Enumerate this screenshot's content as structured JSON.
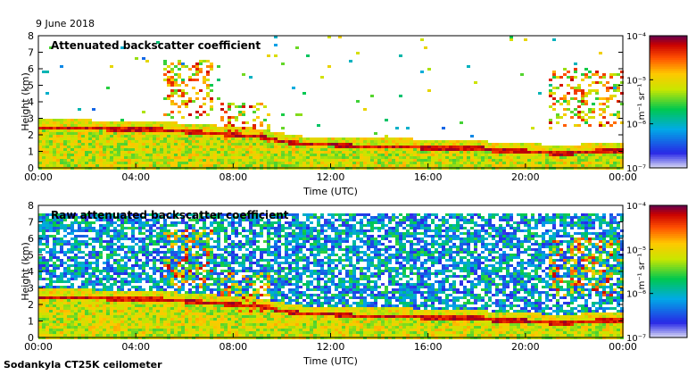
{
  "date_label": "9 June 2018",
  "instrument_label": "Sodankyla CT25K ceilometer",
  "chart_data": [
    {
      "type": "heatmap",
      "title": "Attenuated backscatter coefficient",
      "xlabel": "Time (UTC)",
      "ylabel": "Height (km)",
      "xlim": [
        0,
        24
      ],
      "ylim": [
        0,
        8
      ],
      "x_ticks": [
        "00:00",
        "04:00",
        "08:00",
        "12:00",
        "16:00",
        "20:00",
        "00:00"
      ],
      "y_ticks": [
        "0",
        "1",
        "2",
        "3",
        "4",
        "5",
        "6",
        "7",
        "8"
      ],
      "colorbar": {
        "unit_label": "m⁻¹ sr⁻¹",
        "ticks": [
          "10⁻⁴",
          "10⁻⁵",
          "10⁻⁶",
          "10⁻⁷"
        ],
        "scale": "log",
        "range": [
          1e-07,
          0.0001
        ]
      },
      "layer_height_km": [
        [
          0,
          2.4
        ],
        [
          2,
          2.4
        ],
        [
          4,
          2.3
        ],
        [
          5,
          2.3
        ],
        [
          6,
          2.2
        ],
        [
          7,
          2.1
        ],
        [
          8,
          2.0
        ],
        [
          9,
          1.9
        ],
        [
          10,
          1.6
        ],
        [
          11,
          1.4
        ],
        [
          12,
          1.4
        ],
        [
          13,
          1.3
        ],
        [
          14,
          1.3
        ],
        [
          15,
          1.3
        ],
        [
          16,
          1.2
        ],
        [
          17,
          1.2
        ],
        [
          18,
          1.2
        ],
        [
          19,
          1.0
        ],
        [
          20,
          1.0
        ],
        [
          21,
          0.9
        ],
        [
          22,
          0.9
        ],
        [
          23,
          1.0
        ],
        [
          24,
          1.0
        ]
      ],
      "elevated_features": [
        {
          "t_start": 5.2,
          "t_end": 7.2,
          "h_low": 3.0,
          "h_high": 6.5
        },
        {
          "t_start": 7.5,
          "t_end": 9.5,
          "h_low": 1.5,
          "h_high": 4.0
        },
        {
          "t_start": 21.0,
          "t_end": 24.0,
          "h_low": 2.5,
          "h_high": 6.0
        }
      ],
      "background_noise": "low"
    },
    {
      "type": "heatmap",
      "title": "Raw attenuated backscatter coefficient",
      "xlabel": "Time (UTC)",
      "ylabel": "Height (km)",
      "xlim": [
        0,
        24
      ],
      "ylim": [
        0,
        8
      ],
      "x_ticks": [
        "00:00",
        "04:00",
        "08:00",
        "12:00",
        "16:00",
        "20:00",
        "00:00"
      ],
      "y_ticks": [
        "0",
        "1",
        "2",
        "3",
        "4",
        "5",
        "6",
        "7",
        "8"
      ],
      "colorbar": {
        "unit_label": "m⁻¹ sr⁻¹",
        "ticks": [
          "10⁻⁴",
          "10⁻⁵",
          "10⁻⁶",
          "10⁻⁷"
        ],
        "scale": "log",
        "range": [
          1e-07,
          0.0001
        ]
      },
      "layer_height_km": [
        [
          0,
          2.4
        ],
        [
          2,
          2.4
        ],
        [
          4,
          2.3
        ],
        [
          5,
          2.3
        ],
        [
          6,
          2.2
        ],
        [
          7,
          2.1
        ],
        [
          8,
          2.0
        ],
        [
          9,
          1.9
        ],
        [
          10,
          1.6
        ],
        [
          11,
          1.4
        ],
        [
          12,
          1.4
        ],
        [
          13,
          1.3
        ],
        [
          14,
          1.3
        ],
        [
          15,
          1.3
        ],
        [
          16,
          1.2
        ],
        [
          17,
          1.2
        ],
        [
          18,
          1.2
        ],
        [
          19,
          1.0
        ],
        [
          20,
          1.0
        ],
        [
          21,
          0.9
        ],
        [
          22,
          0.9
        ],
        [
          23,
          1.0
        ],
        [
          24,
          1.0
        ]
      ],
      "elevated_features": [
        {
          "t_start": 5.2,
          "t_end": 7.2,
          "h_low": 3.0,
          "h_high": 6.5
        },
        {
          "t_start": 7.5,
          "t_end": 9.5,
          "h_low": 1.5,
          "h_high": 4.0
        },
        {
          "t_start": 21.0,
          "t_end": 24.0,
          "h_low": 2.5,
          "h_high": 6.0
        }
      ],
      "background_noise": "high"
    }
  ]
}
